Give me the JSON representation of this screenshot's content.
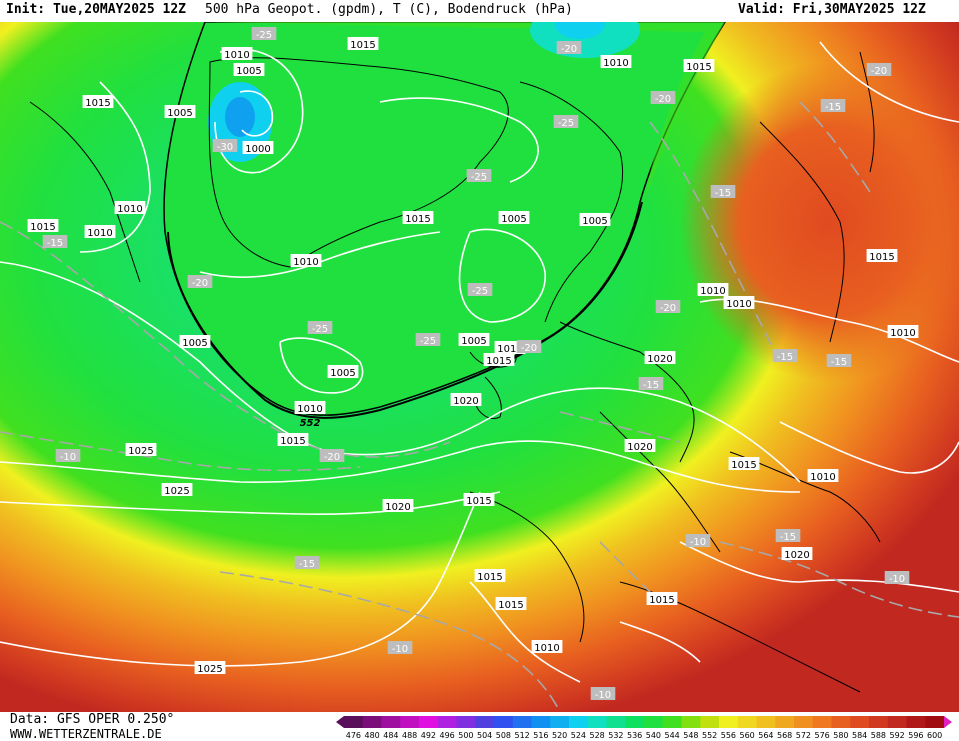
{
  "header": {
    "init": "Init: Tue,20MAY2025 12Z",
    "title": "500 hPa Geopot. (gpdm), T (C), Bodendruck (hPa)",
    "valid": "Valid: Fri,30MAY2025 12Z"
  },
  "footer": {
    "data_source": "Data: GFS OPER 0.250°",
    "website": "WWW.WETTERZENTRALE.DE"
  },
  "colorbar": {
    "ticks": [
      "476",
      "480",
      "484",
      "488",
      "492",
      "496",
      "500",
      "504",
      "508",
      "512",
      "516",
      "520",
      "524",
      "528",
      "532",
      "536",
      "540",
      "544",
      "548",
      "552",
      "556",
      "560",
      "564",
      "568",
      "572",
      "576",
      "580",
      "584",
      "588",
      "592",
      "596",
      "600"
    ],
    "colors": [
      "#5a0f5a",
      "#7a0f7a",
      "#a010a0",
      "#c010c0",
      "#e010e0",
      "#b020e0",
      "#8030e0",
      "#5040e0",
      "#3050f0",
      "#2070f0",
      "#1090f0",
      "#10b0f0",
      "#10d0f0",
      "#10e0c0",
      "#10e090",
      "#10e060",
      "#20e040",
      "#40e020",
      "#80e010",
      "#c0e010",
      "#f0f020",
      "#f0d820",
      "#f0c020",
      "#f0a820",
      "#f09020",
      "#f07820",
      "#e86020",
      "#e04a20",
      "#d03820",
      "#c02820",
      "#b01818",
      "#a00c10"
    ]
  },
  "map_labels": {
    "pressure": [
      {
        "text": "1015"
      },
      {
        "text": "1010"
      },
      {
        "text": "1005"
      },
      {
        "text": "1015"
      },
      {
        "text": "1010"
      },
      {
        "text": "1015"
      },
      {
        "text": "1000"
      },
      {
        "text": "1010"
      },
      {
        "text": "1005"
      },
      {
        "text": "1015"
      },
      {
        "text": "1005"
      },
      {
        "text": "1005"
      },
      {
        "text": "1010"
      },
      {
        "text": "1005"
      },
      {
        "text": "1010"
      },
      {
        "text": "1005"
      },
      {
        "text": "1015"
      },
      {
        "text": "1010"
      },
      {
        "text": "1015"
      },
      {
        "text": "1020"
      },
      {
        "text": "1020"
      },
      {
        "text": "1015"
      },
      {
        "text": "1010"
      },
      {
        "text": "1010"
      },
      {
        "text": "1020"
      },
      {
        "text": "1015"
      },
      {
        "text": "1010"
      },
      {
        "text": "1010"
      },
      {
        "text": "1025"
      },
      {
        "text": "1025"
      },
      {
        "text": "1020"
      },
      {
        "text": "1015"
      },
      {
        "text": "1015"
      },
      {
        "text": "1015"
      },
      {
        "text": "1015"
      },
      {
        "text": "1010"
      },
      {
        "text": "1025"
      },
      {
        "text": "1005"
      },
      {
        "text": "1010"
      },
      {
        "text": "1015"
      },
      {
        "text": "1020"
      }
    ],
    "temperature": [
      {
        "text": "-25"
      },
      {
        "text": "-30"
      },
      {
        "text": "-25"
      },
      {
        "text": "-20"
      },
      {
        "text": "-25"
      },
      {
        "text": "-15"
      },
      {
        "text": "-20"
      },
      {
        "text": "-25"
      },
      {
        "text": "-25"
      },
      {
        "text": "-25"
      },
      {
        "text": "-20"
      },
      {
        "text": "-15"
      },
      {
        "text": "-20"
      },
      {
        "text": "-15"
      },
      {
        "text": "-15"
      },
      {
        "text": "-10"
      },
      {
        "text": "-20"
      },
      {
        "text": "-15"
      },
      {
        "text": "-10"
      },
      {
        "text": "-10"
      },
      {
        "text": "-10"
      },
      {
        "text": "-15"
      },
      {
        "text": "-10"
      },
      {
        "text": "-15"
      },
      {
        "text": "-20"
      },
      {
        "text": "-15"
      },
      {
        "text": "-20"
      }
    ],
    "geopotential": [
      {
        "text": "552"
      }
    ]
  }
}
